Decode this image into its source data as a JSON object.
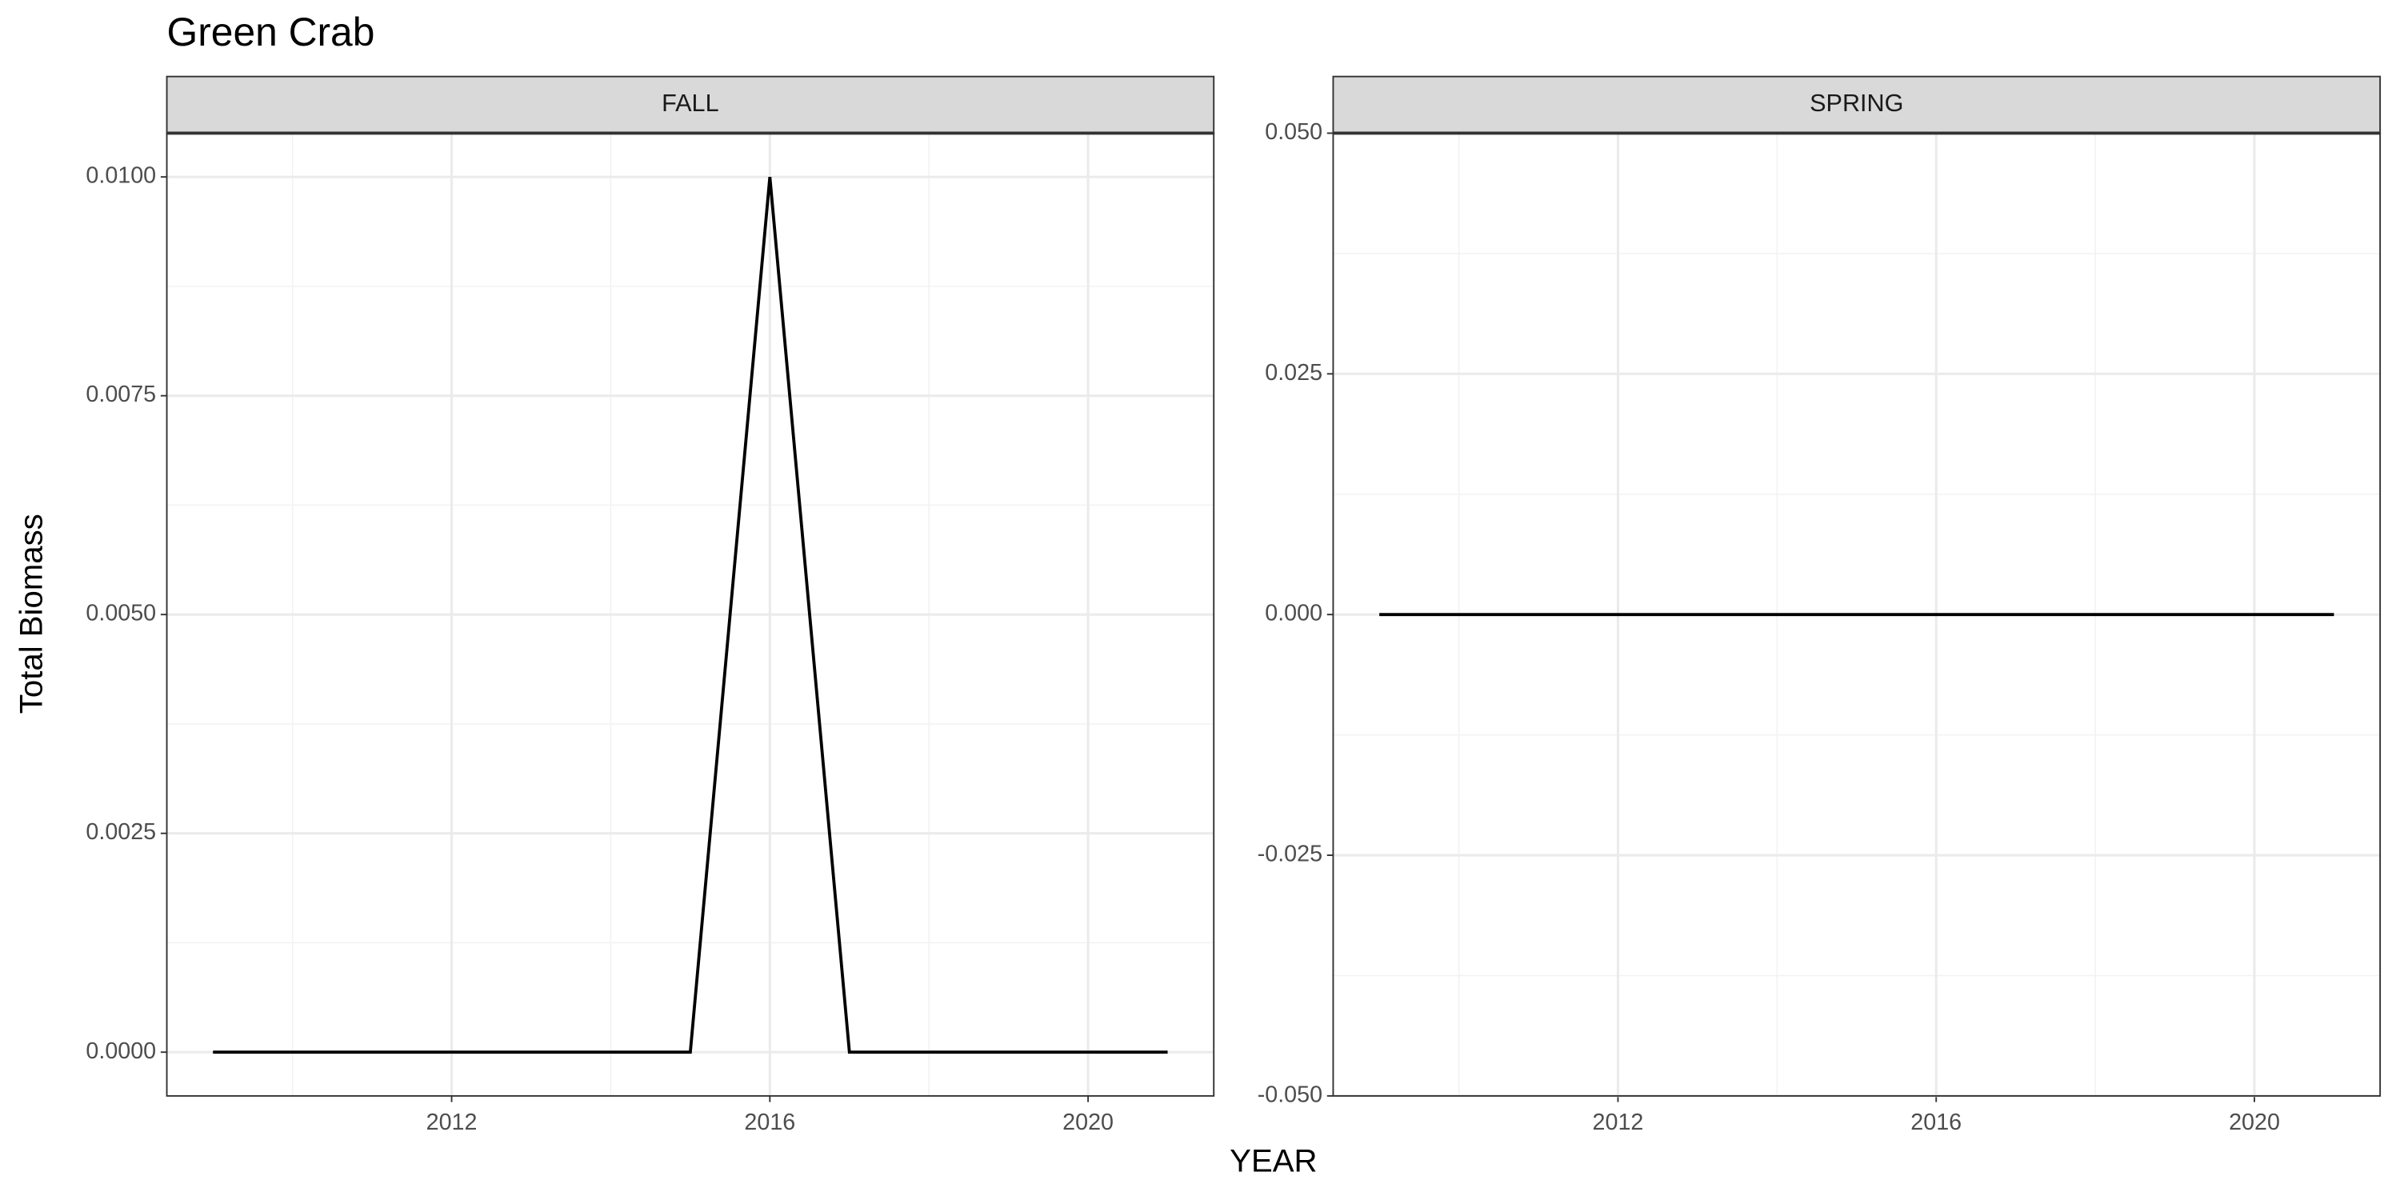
{
  "title": "Green Crab",
  "x_label": "YEAR",
  "y_label": "Total Biomass",
  "chart_data": [
    {
      "type": "line",
      "title": "FALL",
      "x": [
        2009,
        2010,
        2011,
        2012,
        2013,
        2014,
        2015,
        2016,
        2017,
        2018,
        2019,
        2020,
        2021
      ],
      "values": [
        0,
        0,
        0,
        0,
        0,
        0,
        0,
        0.01,
        0,
        0,
        0,
        0,
        0
      ],
      "color": "#000000",
      "xlim": [
        2008.42,
        2021.58
      ],
      "xticks": [
        2012,
        2016,
        2020
      ],
      "ylim": [
        -0.0005,
        0.0105
      ],
      "yticks": [
        {
          "value": 0,
          "label": "0.0000"
        },
        {
          "value": 0.0025,
          "label": "0.0025"
        },
        {
          "value": 0.005,
          "label": "0.0050"
        },
        {
          "value": 0.0075,
          "label": "0.0075"
        },
        {
          "value": 0.01,
          "label": "0.0100"
        }
      ],
      "grid": true
    },
    {
      "type": "line",
      "title": "SPRING",
      "x": [
        2009,
        2010,
        2011,
        2012,
        2013,
        2014,
        2015,
        2016,
        2017,
        2018,
        2019,
        2020,
        2021
      ],
      "values": [
        0,
        0,
        0,
        0,
        0,
        0,
        0,
        0,
        0,
        0,
        0,
        0,
        0
      ],
      "color": "#000000",
      "xlim": [
        2008.42,
        2021.58
      ],
      "xticks": [
        2012,
        2016,
        2020
      ],
      "ylim": [
        -0.05,
        0.05
      ],
      "yticks": [
        {
          "value": -0.05,
          "label": "-0.050"
        },
        {
          "value": -0.025,
          "label": "-0.025"
        },
        {
          "value": 0,
          "label": "0.000"
        },
        {
          "value": 0.025,
          "label": "0.025"
        },
        {
          "value": 0.05,
          "label": "0.050"
        }
      ],
      "grid": true
    }
  ]
}
